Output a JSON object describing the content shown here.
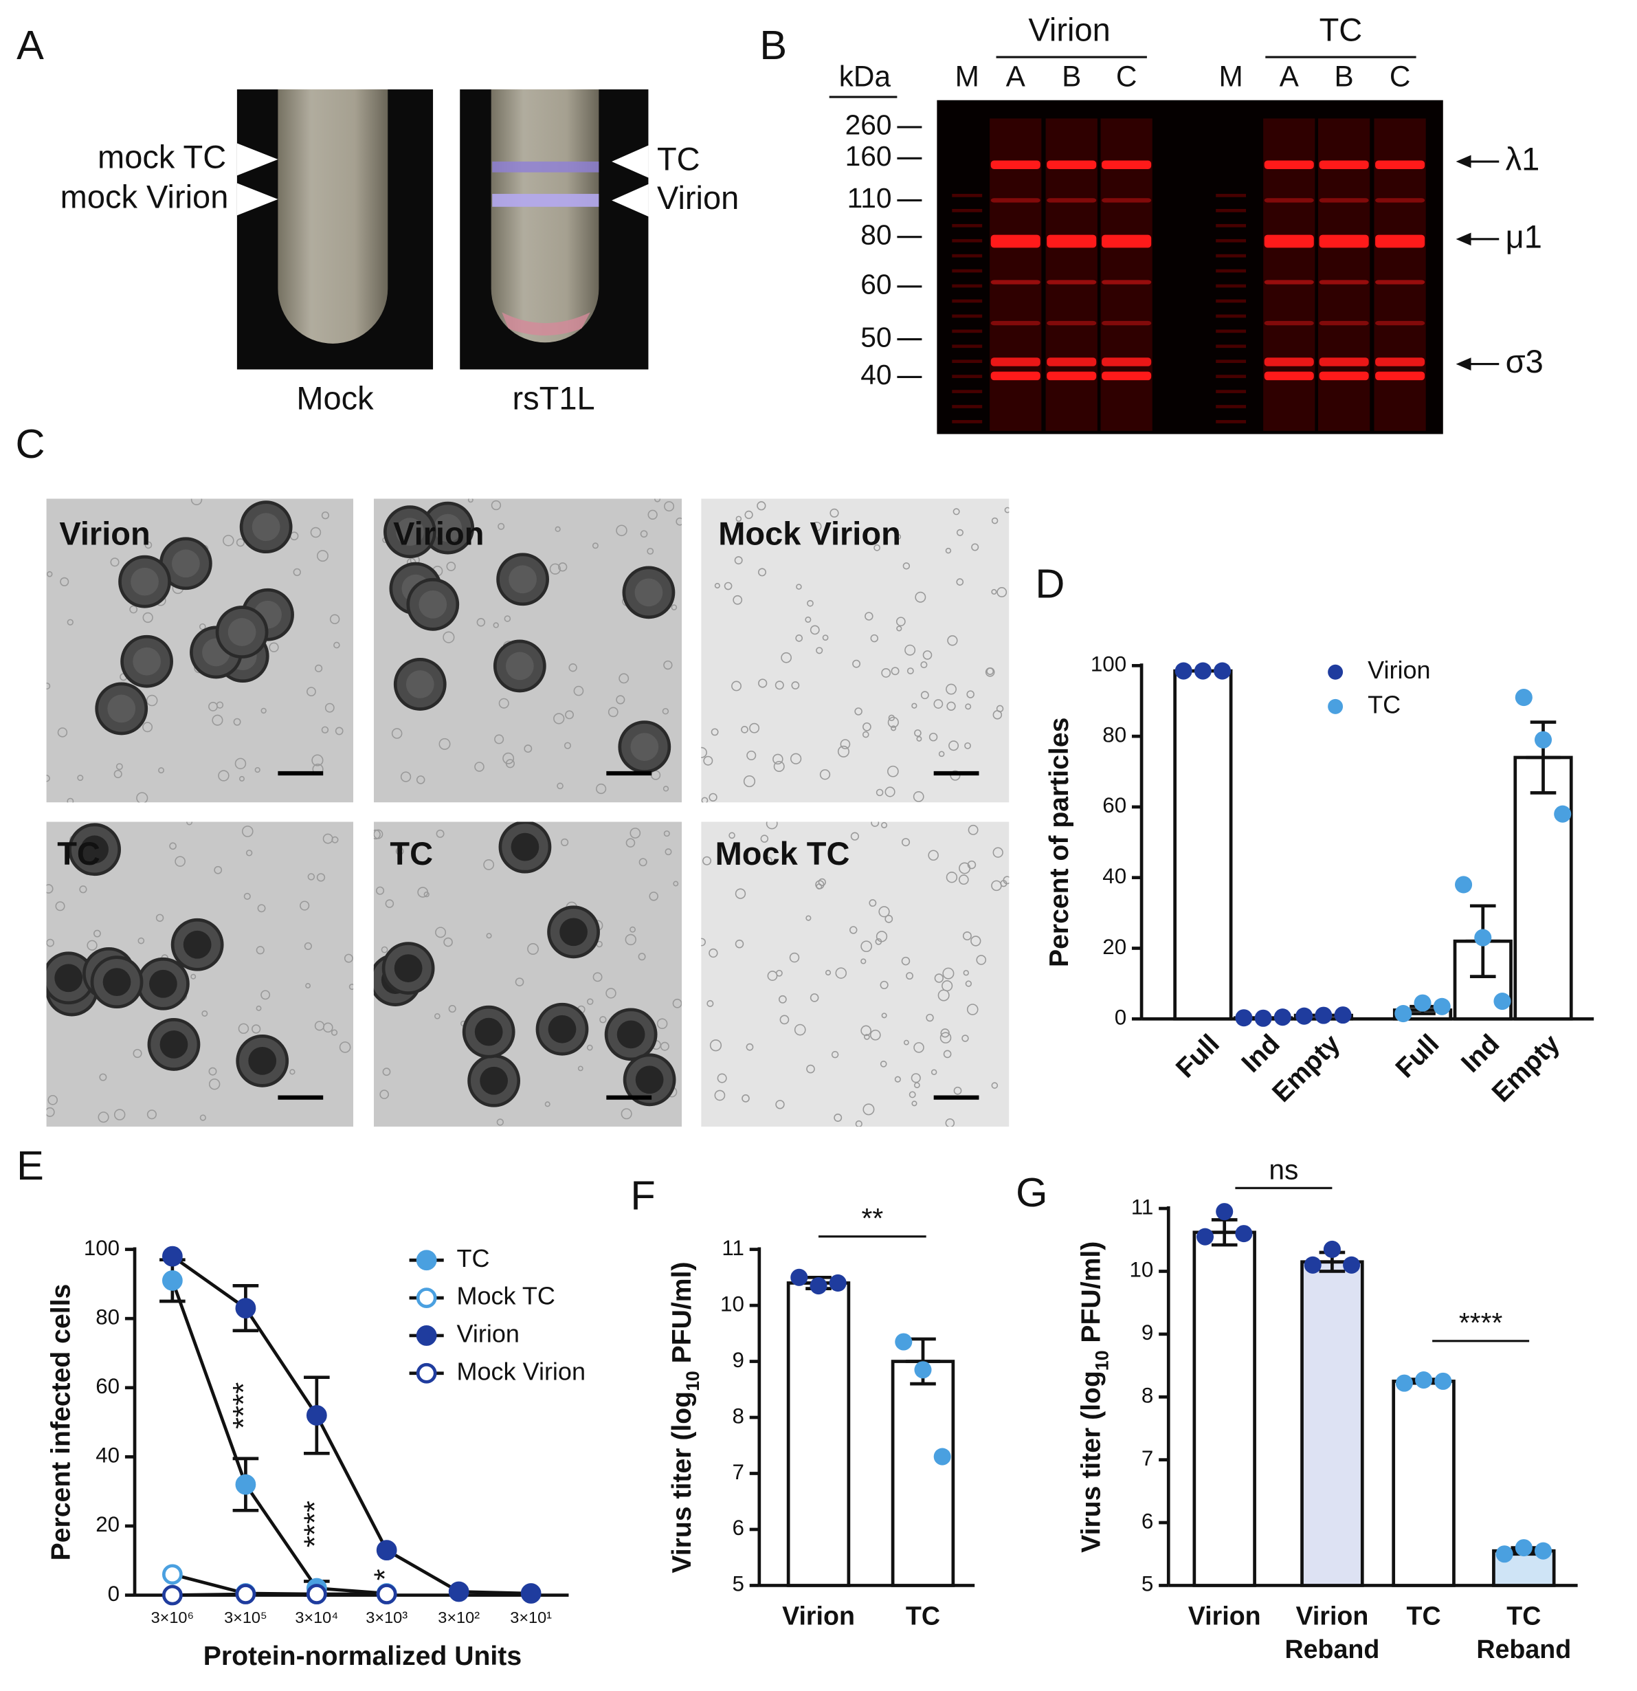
{
  "panel_labels": [
    "A",
    "B",
    "C",
    "D",
    "E",
    "F",
    "G"
  ],
  "panel_a": {
    "tubes": [
      {
        "label": "Mock",
        "bands": [
          "mock TC",
          "mock Virion"
        ]
      },
      {
        "label": "rsT1L",
        "bands": [
          "TC",
          "Virion"
        ]
      }
    ]
  },
  "panel_b": {
    "unit": "kDa",
    "groups": [
      {
        "name": "Virion",
        "lanes": [
          "M",
          "A",
          "B",
          "C"
        ]
      },
      {
        "name": "TC",
        "lanes": [
          "M",
          "A",
          "B",
          "C"
        ]
      }
    ],
    "markers": [
      260,
      160,
      110,
      80,
      60,
      50,
      40
    ],
    "proteins": [
      "λ1",
      "μ1",
      "σ3"
    ]
  },
  "panel_c": {
    "images": [
      "Virion",
      "Virion",
      "Mock Virion",
      "TC",
      "TC",
      "Mock TC"
    ]
  },
  "chart_data": [
    {
      "type": "bar",
      "ylabel": "Percent of particles",
      "categories": [
        "Full",
        "Ind",
        "Empty",
        "Full",
        "Ind",
        "Empty"
      ],
      "values": [
        98.5,
        0.3,
        1,
        2.5,
        22,
        74
      ],
      "errors": [
        0,
        0,
        0,
        1,
        10,
        10
      ],
      "bar_color": "#ffffff",
      "series": [
        {
          "name": "Virion",
          "color": "#1f3c9e",
          "values": [
            [
              98.5,
              98.5,
              98.5
            ],
            [
              0.3,
              0.2,
              0.5
            ],
            [
              0.8,
              1,
              1.1
            ],
            null,
            null,
            null
          ]
        },
        {
          "name": "TC",
          "color": "#4aa0e0",
          "values": [
            null,
            null,
            null,
            [
              1.5,
              4.5,
              3.5
            ],
            [
              38,
              23,
              5
            ],
            [
              91,
              79,
              58
            ]
          ]
        }
      ],
      "ylim": [
        0,
        100
      ],
      "yticks": [
        0,
        20,
        40,
        60,
        80,
        100
      ],
      "legend": "top-right"
    },
    {
      "type": "line",
      "ylabel": "Percent infected cells",
      "xlabel": "Protein-normalized Units",
      "categories": [
        "3×10⁶",
        "3×10⁵",
        "3×10⁴",
        "3×10³",
        "3×10²",
        "3×10¹"
      ],
      "series": [
        {
          "name": "TC",
          "color": "#4aa0e0",
          "marker": "filled",
          "values": [
            91,
            32,
            2,
            0.5,
            null,
            null
          ],
          "errors": [
            6,
            7.5,
            2,
            0,
            null,
            null
          ]
        },
        {
          "name": "Mock TC",
          "color": "#4aa0e0",
          "marker": "open",
          "values": [
            6,
            0.5,
            0.3,
            0.3,
            null,
            null
          ],
          "errors": [
            0,
            0,
            0,
            0,
            null,
            null
          ]
        },
        {
          "name": "Virion",
          "color": "#1f3c9e",
          "marker": "filled",
          "values": [
            98,
            83,
            52,
            13,
            1,
            0.5
          ],
          "errors": [
            0,
            6.5,
            11,
            0,
            0,
            0
          ]
        },
        {
          "name": "Mock Virion",
          "color": "#1f3c9e",
          "marker": "open",
          "values": [
            0,
            0.3,
            0.3,
            0.3,
            null,
            null
          ],
          "errors": [
            0,
            0,
            0,
            0,
            null,
            null
          ]
        }
      ],
      "annotations": [
        "****",
        "****",
        "*"
      ],
      "ylim": [
        0,
        100
      ],
      "yticks": [
        0,
        20,
        40,
        60,
        80,
        100
      ],
      "legend": "top-right"
    },
    {
      "type": "bar",
      "ylabel": [
        "Virus titer (log",
        "10",
        " PFU/ml)"
      ],
      "categories": [
        [
          "Virion"
        ],
        [
          "TC"
        ]
      ],
      "values": [
        10.4,
        9.0
      ],
      "errors": [
        0.1,
        0.4
      ],
      "bar_color": "#ffffff",
      "points": [
        [
          10.5,
          10.35,
          10.4
        ],
        [
          9.35,
          8.85,
          7.3
        ]
      ],
      "point_colors": [
        "#1f3c9e",
        "#4aa0e0"
      ],
      "ylim": [
        5,
        11
      ],
      "yticks": [
        5,
        6,
        7,
        8,
        9,
        10,
        11
      ],
      "significance": [
        "**"
      ]
    },
    {
      "type": "bar",
      "ylabel": [
        "Virus titer (log",
        "10",
        " PFU/ml)"
      ],
      "categories": [
        [
          "Virion"
        ],
        [
          "Virion",
          "Reband"
        ],
        [
          "TC"
        ],
        [
          "TC",
          "Reband"
        ]
      ],
      "values": [
        10.62,
        10.15,
        8.25,
        5.55
      ],
      "errors": [
        0.2,
        0.15,
        0.03,
        0.05
      ],
      "bar_colors": [
        "#ffffff",
        "#dde2f3",
        "#ffffff",
        "#cfe4f6"
      ],
      "points": [
        [
          10.55,
          10.95,
          10.6
        ],
        [
          10.1,
          10.35,
          10.1
        ],
        [
          8.22,
          8.27,
          8.25
        ],
        [
          5.5,
          5.6,
          5.55
        ]
      ],
      "point_colors": [
        "#1f3c9e",
        "#1f3c9e",
        "#4aa0e0",
        "#4aa0e0"
      ],
      "ylim": [
        5,
        11
      ],
      "yticks": [
        5,
        6,
        7,
        8,
        9,
        10,
        11
      ],
      "significance": [
        "ns",
        "****"
      ]
    }
  ]
}
